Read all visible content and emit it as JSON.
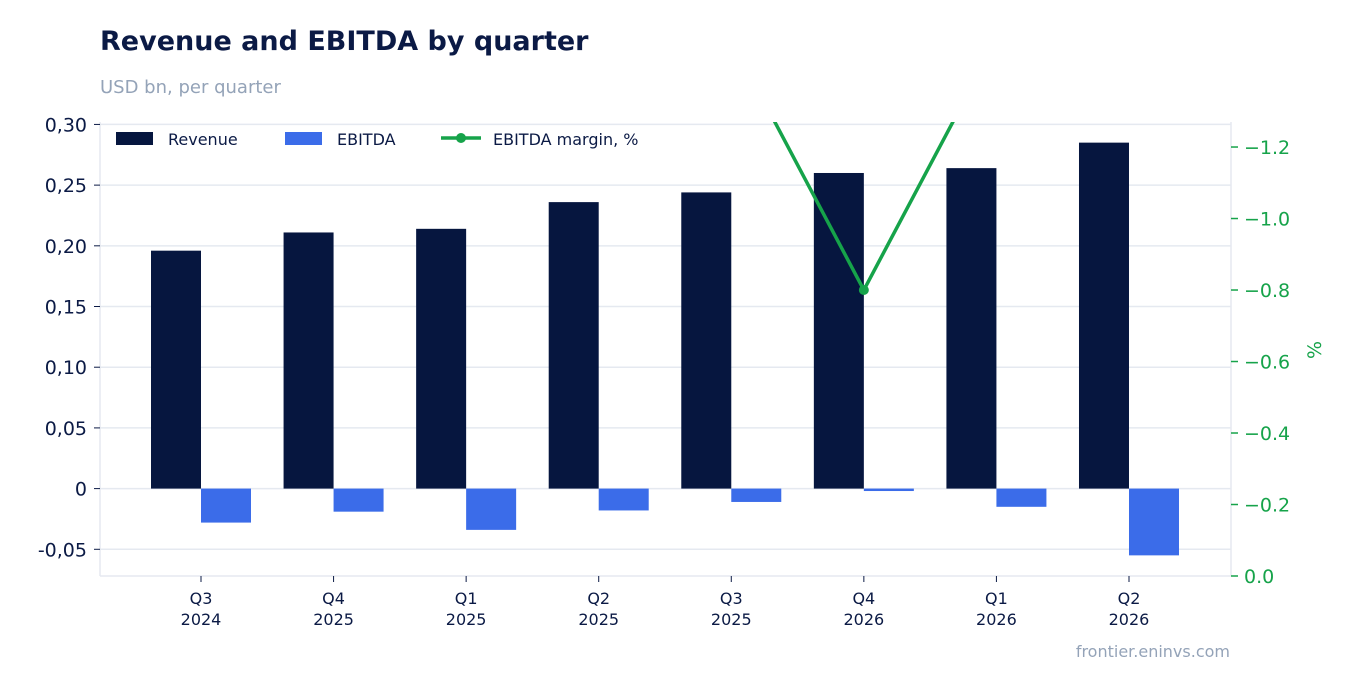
{
  "header": {
    "title": "Revenue and EBITDA by quarter",
    "subtitle": "USD bn, per quarter"
  },
  "footer": {
    "source": "frontier.eninvs.com"
  },
  "chart_data": {
    "type": "bar",
    "categories": [
      [
        "Q3",
        "2024"
      ],
      [
        "Q4",
        "2025"
      ],
      [
        "Q1",
        "2025"
      ],
      [
        "Q2",
        "2025"
      ],
      [
        "Q3",
        "2025"
      ],
      [
        "Q4",
        "2026"
      ],
      [
        "Q1",
        "2026"
      ],
      [
        "Q2",
        "2026"
      ]
    ],
    "series": [
      {
        "name": "Revenue",
        "kind": "bar",
        "axis": "left",
        "color": "#06163f",
        "values": [
          0.196,
          0.211,
          0.214,
          0.236,
          0.244,
          0.26,
          0.264,
          0.285
        ]
      },
      {
        "name": "EBITDA",
        "kind": "bar",
        "axis": "left",
        "color": "#3b6ce9",
        "values": [
          -0.028,
          -0.019,
          -0.034,
          -0.018,
          -0.011,
          -0.002,
          -0.015,
          -0.055
        ]
      },
      {
        "name": "EBITDA margin, %",
        "kind": "line",
        "axis": "right",
        "color": "#16a34a",
        "values": [
          null,
          null,
          null,
          null,
          -1.5,
          -0.8,
          -1.5,
          null
        ]
      }
    ],
    "y_left": {
      "min": -0.072,
      "max": 0.302,
      "ticks": [
        0.3,
        0.25,
        0.2,
        0.15,
        0.1,
        0.05,
        0,
        -0.05
      ],
      "tick_labels": [
        "0,30",
        "0,25",
        "0,20",
        "0,15",
        "0,10",
        "0,05",
        "0",
        "-0,05"
      ]
    },
    "y_right": {
      "label": "%",
      "inverted": true,
      "min": 0.0,
      "max": -1.27,
      "ticks": [
        -1.2,
        -1.0,
        -0.8,
        -0.6,
        -0.4,
        -0.2,
        0.0
      ],
      "tick_labels": [
        "−1.2",
        "−1.0",
        "−0.8",
        "−0.6",
        "−0.4",
        "−0.2",
        "0.0"
      ]
    },
    "grid": true,
    "legend_position": "top-left"
  }
}
